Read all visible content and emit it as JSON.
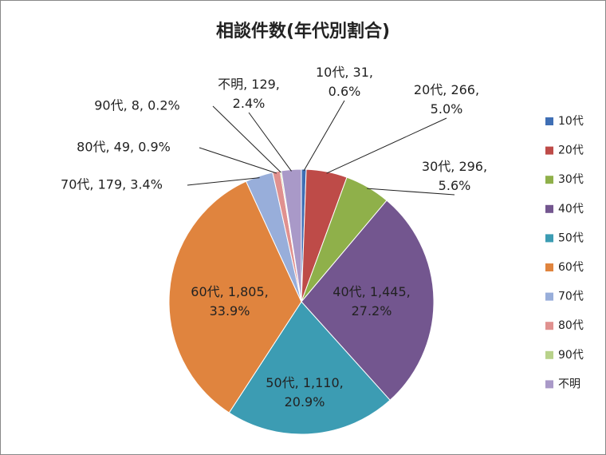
{
  "chart_data": {
    "type": "pie",
    "title": "相談件数(年代別割合)",
    "categories": [
      "10代",
      "20代",
      "30代",
      "40代",
      "50代",
      "60代",
      "70代",
      "80代",
      "90代",
      "不明"
    ],
    "values": [
      31,
      266,
      296,
      1445,
      1110,
      1805,
      179,
      49,
      8,
      129
    ],
    "value_labels": [
      "10代, 31, 0.6%",
      "20代, 266, 5.0%",
      "30代, 296, 5.6%",
      "40代, 1,445, 27.2%",
      "50代, 1,110, 20.9%",
      "60代, 1,805, 33.9%",
      "70代, 179, 3.4%",
      "80代, 49, 0.9%",
      "90代, 8, 0.2%",
      "不明, 129, 2.4%"
    ],
    "colors": [
      "#3F6FB5",
      "#BE4B48",
      "#8FB04A",
      "#73568F",
      "#3C9CB3",
      "#E0843E",
      "#98AEDA",
      "#E0918F",
      "#B8D28A",
      "#A999C8"
    ],
    "legend": "right"
  }
}
